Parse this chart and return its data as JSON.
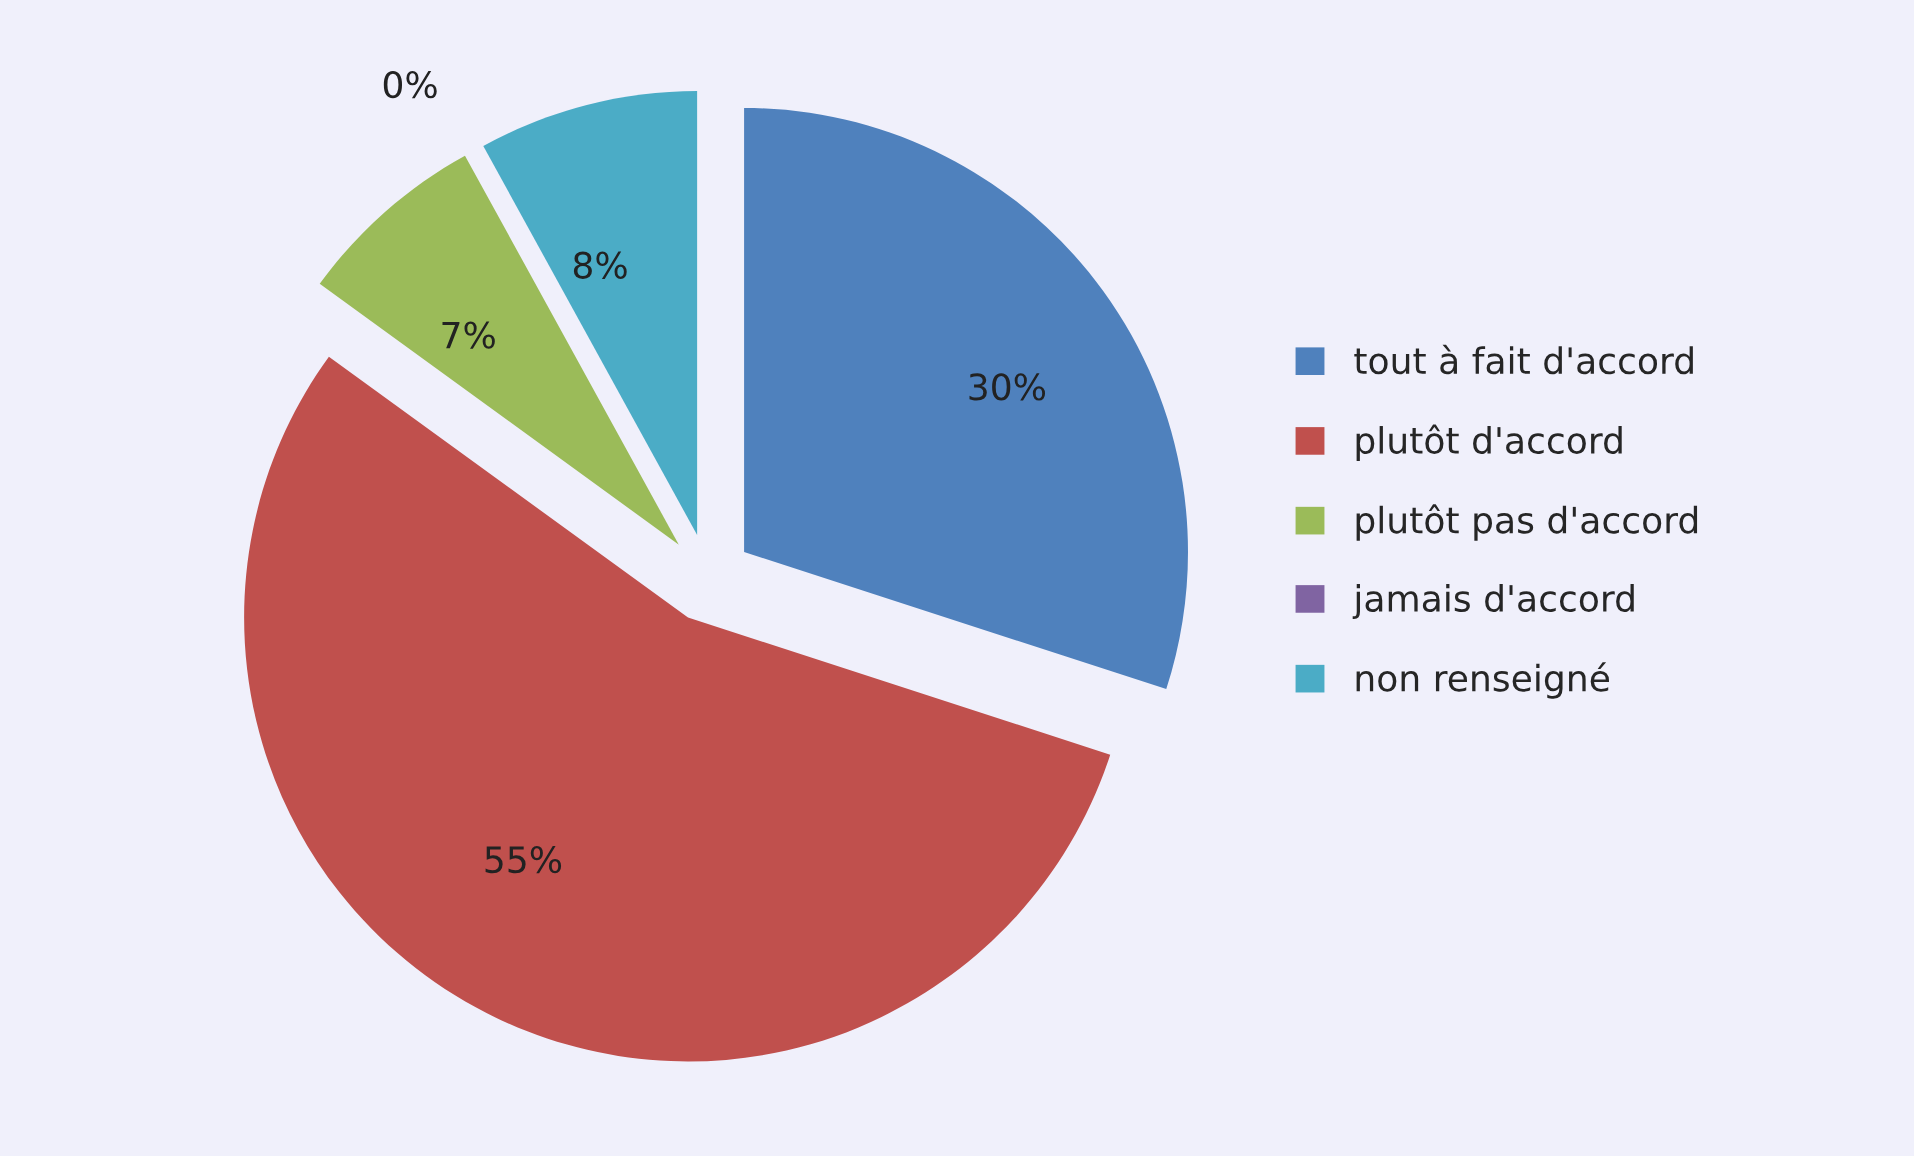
{
  "chart_data": {
    "type": "pie",
    "categories": [
      "tout à fait d'accord",
      "plutôt d'accord",
      "plutôt pas d'accord",
      "jamais d'accord",
      "non renseigné"
    ],
    "values": [
      30,
      55,
      7,
      0,
      8
    ],
    "colors": [
      "#4f81bd",
      "#c0504d",
      "#9bbb59",
      "#8064a2",
      "#4bacc6"
    ],
    "value_labels": [
      "30%",
      "55%",
      "7%",
      "0%",
      "8%"
    ],
    "legend": "right"
  }
}
